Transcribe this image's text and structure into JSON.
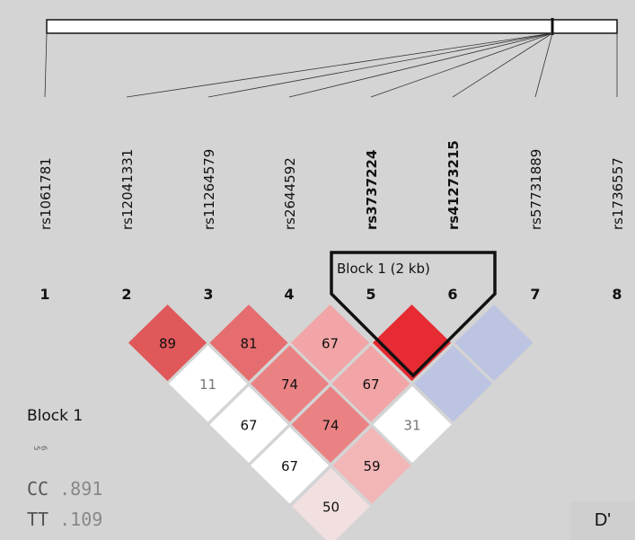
{
  "snps": [
    {
      "num": "1",
      "name": "rs1061781",
      "bold": false
    },
    {
      "num": "2",
      "name": "rs12041331",
      "bold": false
    },
    {
      "num": "3",
      "name": "rs11264579",
      "bold": false
    },
    {
      "num": "4",
      "name": "rs2644592",
      "bold": false
    },
    {
      "num": "5",
      "name": "rs3737224",
      "bold": true
    },
    {
      "num": "6",
      "name": "rs41273215",
      "bold": true
    },
    {
      "num": "7",
      "name": "rs57731889",
      "bold": false
    },
    {
      "num": "8",
      "name": "rs1736557",
      "bold": false
    }
  ],
  "block": {
    "label": "Block 1 (2 kb)",
    "snps": [
      5,
      6
    ]
  },
  "measure": "D'",
  "ld_cells": [
    {
      "pair": [
        2,
        3
      ],
      "value": "89",
      "color": "#e0585a"
    },
    {
      "pair": [
        2,
        4
      ],
      "value": "11",
      "color": "#ffffff"
    },
    {
      "pair": [
        2,
        5
      ],
      "value": "67",
      "color": "#ffffff"
    },
    {
      "pair": [
        2,
        6
      ],
      "value": "67",
      "color": "#ffffff"
    },
    {
      "pair": [
        2,
        7
      ],
      "value": "50",
      "color": "#f2dfe0"
    },
    {
      "pair": [
        3,
        4
      ],
      "value": "81",
      "color": "#e66d6f"
    },
    {
      "pair": [
        3,
        5
      ],
      "value": "74",
      "color": "#ea8283"
    },
    {
      "pair": [
        3,
        6
      ],
      "value": "74",
      "color": "#ea8283"
    },
    {
      "pair": [
        3,
        7
      ],
      "value": "59",
      "color": "#f3b6b7"
    },
    {
      "pair": [
        4,
        5
      ],
      "value": "67",
      "color": "#f1a5a6"
    },
    {
      "pair": [
        4,
        6
      ],
      "value": "67",
      "color": "#f1a5a6"
    },
    {
      "pair": [
        4,
        7
      ],
      "value": "31",
      "color": "#ffffff"
    },
    {
      "pair": [
        5,
        6
      ],
      "value": "",
      "color": "#e62b33"
    },
    {
      "pair": [
        5,
        7
      ],
      "value": "",
      "color": "#bcc4e2"
    },
    {
      "pair": [
        6,
        7
      ],
      "value": "",
      "color": "#bcc4e2"
    }
  ],
  "haplotypes": {
    "title": "Block 1",
    "markers": [
      "5",
      "6"
    ],
    "rows": [
      {
        "alleles": "CC",
        "freq": " .891"
      },
      {
        "alleles": "TT",
        "freq": " .109"
      }
    ]
  },
  "colors": {
    "background": "#d4d4d4",
    "strong_ld": "#e62b33",
    "low_lod": "#bcc4e2",
    "no_ld": "#ffffff"
  }
}
